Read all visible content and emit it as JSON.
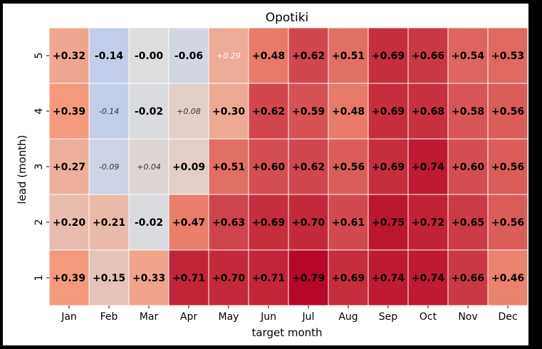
{
  "chart_data": {
    "type": "heatmap",
    "title": "Opotiki",
    "xlabel": "target month",
    "ylabel": "lead (month)",
    "x_categories": [
      "Jan",
      "Feb",
      "Mar",
      "Apr",
      "May",
      "Jun",
      "Jul",
      "Aug",
      "Sep",
      "Oct",
      "Nov",
      "Dec"
    ],
    "y_categories": [
      "5",
      "4",
      "3",
      "2",
      "1"
    ],
    "color_scale": "coolwarm",
    "vmin": -0.8,
    "vmax": 0.8,
    "grid": false,
    "values": [
      [
        0.32,
        -0.14,
        -0.0,
        -0.06,
        0.29,
        0.48,
        0.62,
        0.51,
        0.69,
        0.66,
        0.54,
        0.53
      ],
      [
        0.39,
        -0.14,
        -0.02,
        0.08,
        0.3,
        0.62,
        0.59,
        0.48,
        0.69,
        0.68,
        0.58,
        0.56
      ],
      [
        0.27,
        -0.09,
        0.04,
        0.09,
        0.51,
        0.6,
        0.62,
        0.56,
        0.69,
        0.74,
        0.6,
        0.56
      ],
      [
        0.2,
        0.21,
        -0.02,
        0.47,
        0.63,
        0.69,
        0.7,
        0.61,
        0.75,
        0.72,
        0.65,
        0.56
      ],
      [
        0.39,
        0.15,
        0.33,
        0.71,
        0.7,
        0.71,
        0.79,
        0.69,
        0.74,
        0.74,
        0.66,
        0.46
      ]
    ],
    "labels": [
      [
        "+0.32",
        "-0.14",
        "-0.00",
        "-0.06",
        "+0.29",
        "+0.48",
        "+0.62",
        "+0.51",
        "+0.69",
        "+0.66",
        "+0.54",
        "+0.53"
      ],
      [
        "+0.39",
        "-0.14",
        "-0.02",
        "+0.08",
        "+0.30",
        "+0.62",
        "+0.59",
        "+0.48",
        "+0.69",
        "+0.68",
        "+0.58",
        "+0.56"
      ],
      [
        "+0.27",
        "-0.09",
        "+0.04",
        "+0.09",
        "+0.51",
        "+0.60",
        "+0.62",
        "+0.56",
        "+0.69",
        "+0.74",
        "+0.60",
        "+0.56"
      ],
      [
        "+0.20",
        "+0.21",
        "-0.02",
        "+0.47",
        "+0.63",
        "+0.69",
        "+0.70",
        "+0.61",
        "+0.75",
        "+0.72",
        "+0.65",
        "+0.56"
      ],
      [
        "+0.39",
        "+0.15",
        "+0.33",
        "+0.71",
        "+0.70",
        "+0.71",
        "+0.79",
        "+0.69",
        "+0.74",
        "+0.74",
        "+0.66",
        "+0.46"
      ]
    ],
    "italic_cells": [
      [
        false,
        false,
        false,
        false,
        true,
        false,
        false,
        false,
        false,
        false,
        false,
        false
      ],
      [
        false,
        true,
        false,
        true,
        false,
        false,
        false,
        false,
        false,
        false,
        false,
        false
      ],
      [
        false,
        true,
        true,
        false,
        false,
        false,
        false,
        false,
        false,
        false,
        false,
        false
      ],
      [
        false,
        false,
        false,
        false,
        false,
        false,
        false,
        false,
        false,
        false,
        false,
        false
      ],
      [
        false,
        false,
        false,
        false,
        false,
        false,
        false,
        false,
        false,
        false,
        false,
        false
      ]
    ]
  }
}
